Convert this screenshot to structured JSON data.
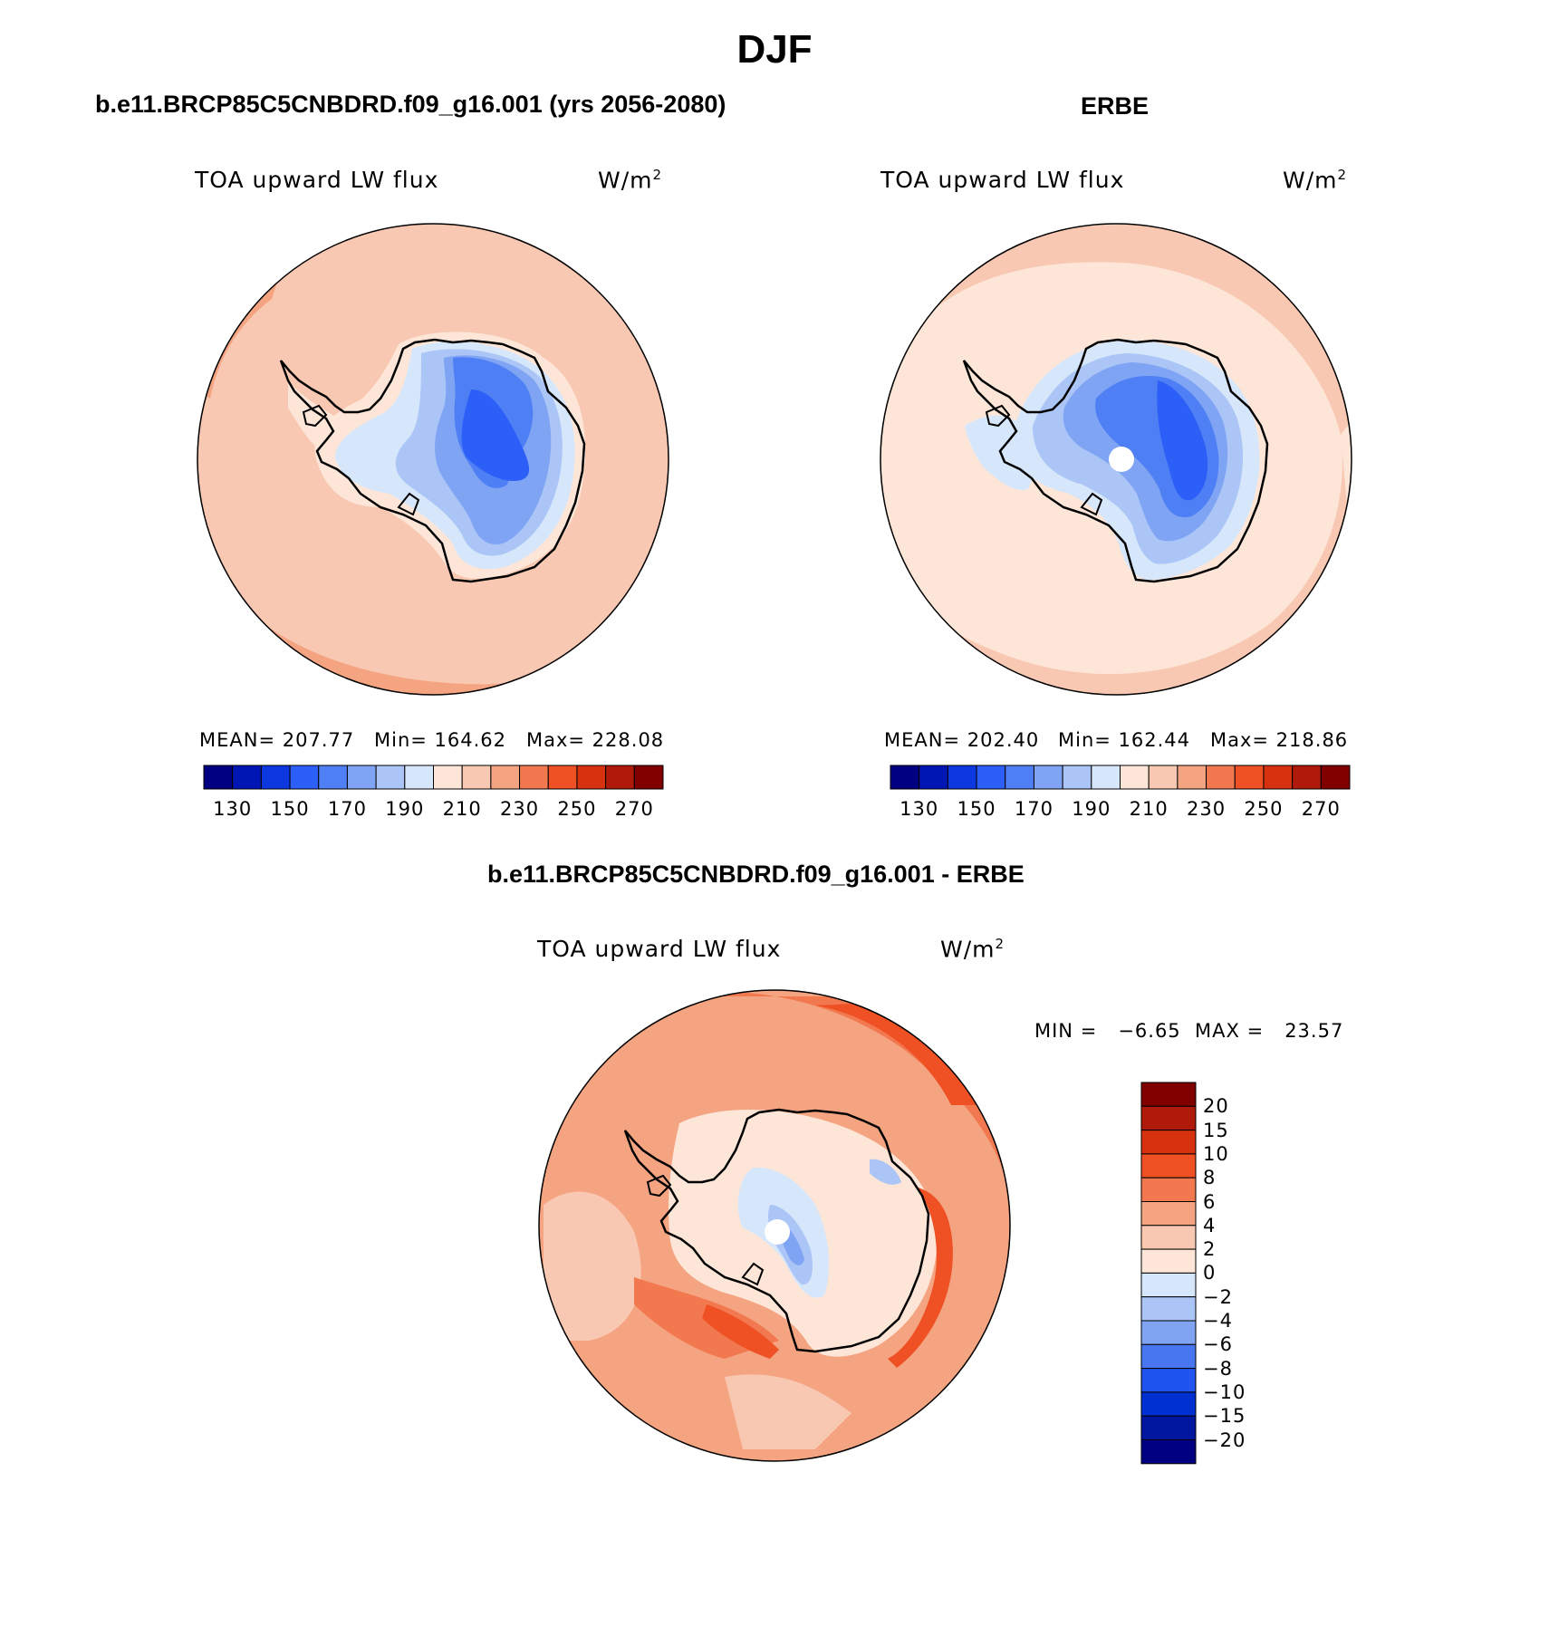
{
  "title": "DJF",
  "panels": [
    {
      "case_label": "b.e11.BRCP85C5CNBDRD.f09_g16.001 (yrs 2056-2080)",
      "variable": "TOA upward LW flux",
      "units": "W/m",
      "units_sup": "2",
      "stats": {
        "mean": "MEAN= 207.77",
        "min": "Min= 164.62",
        "max": "Max= 228.08"
      },
      "colorbar_ticks": [
        "130",
        "150",
        "170",
        "190",
        "210",
        "230",
        "250",
        "270"
      ]
    },
    {
      "case_label": "ERBE",
      "variable": "TOA upward LW flux",
      "units": "W/m",
      "units_sup": "2",
      "stats": {
        "mean": "MEAN= 202.40",
        "min": "Min= 162.44",
        "max": "Max= 218.86"
      },
      "colorbar_ticks": [
        "130",
        "150",
        "170",
        "190",
        "210",
        "230",
        "250",
        "270"
      ]
    }
  ],
  "difference": {
    "case_label": "b.e11.BRCP85C5CNBDRD.f09_g16.001 - ERBE",
    "variable": "TOA upward LW flux",
    "units": "W/m",
    "units_sup": "2",
    "minmax": "MIN =   −6.65  MAX =   23.57",
    "colorbar_ticks": [
      "20",
      "15",
      "10",
      "8",
      "6",
      "4",
      "2",
      "0",
      "−2",
      "−4",
      "−6",
      "−8",
      "−10",
      "−15",
      "−20"
    ]
  },
  "colors": {
    "abs_scale": [
      "#000080",
      "#0016b4",
      "#0d38e0",
      "#2c5ef8",
      "#4f7ff4",
      "#7fa4f4",
      "#abc5f6",
      "#d6e6fb",
      "#fde6d8",
      "#f9c8b2",
      "#f5a482",
      "#f2784f",
      "#ef5124",
      "#d6320f",
      "#b01a0a",
      "#800000"
    ],
    "diff_scale": [
      "#000080",
      "#00169e",
      "#0030d0",
      "#1f54f0",
      "#4876f0",
      "#80a4f2",
      "#abc5f6",
      "#d6e6fb",
      "#fde6d8",
      "#f9c8b2",
      "#f5a482",
      "#f2784f",
      "#ef5124",
      "#d6320f",
      "#b01a0a",
      "#800000"
    ]
  }
}
